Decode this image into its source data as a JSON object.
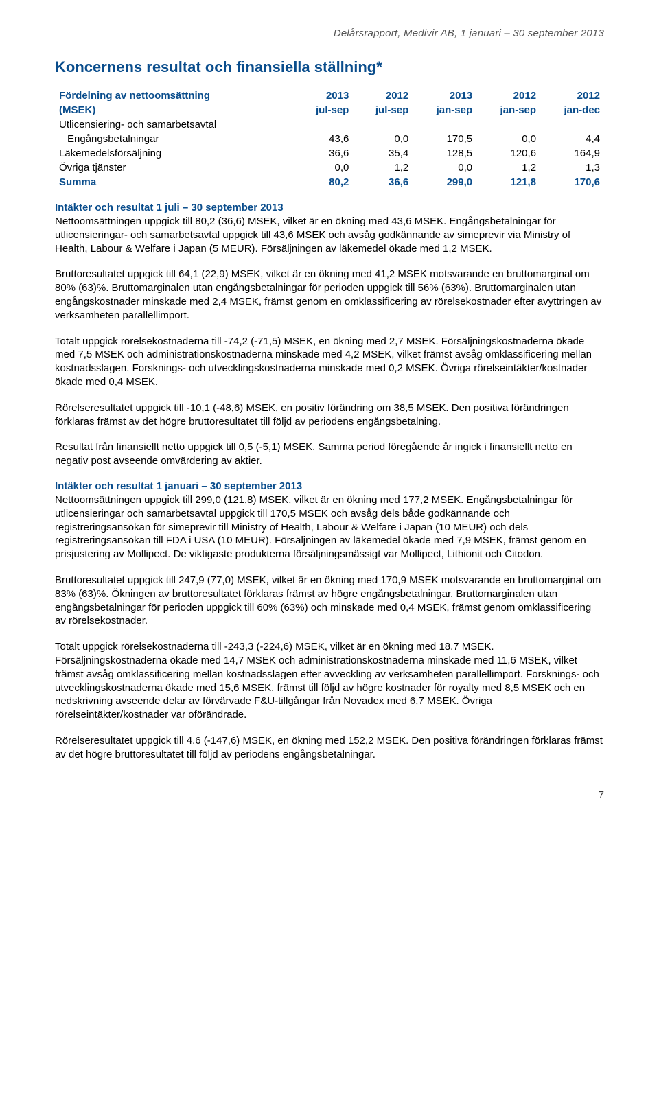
{
  "header": "Delårsrapport, Medivir AB, 1 januari – 30 september 2013",
  "title": "Koncernens resultat och finansiella ställning*",
  "table": {
    "head_rows": [
      [
        "Fördelning av nettoomsättning",
        "2013",
        "2012",
        "2013",
        "2012",
        "2012"
      ],
      [
        "(MSEK)",
        "jul-sep",
        "jul-sep",
        "jan-sep",
        "jan-sep",
        "jan-dec"
      ]
    ],
    "body_rows": [
      {
        "label": "Utlicensiering- och samarbetsavtal",
        "cells": [
          "",
          "",
          "",
          "",
          ""
        ],
        "indent": false
      },
      {
        "label": "Engångsbetalningar",
        "cells": [
          "43,6",
          "0,0",
          "170,5",
          "0,0",
          "4,4"
        ],
        "indent": true
      },
      {
        "label": "Läkemedelsförsäljning",
        "cells": [
          "36,6",
          "35,4",
          "128,5",
          "120,6",
          "164,9"
        ],
        "indent": false
      },
      {
        "label": "Övriga tjänster",
        "cells": [
          "0,0",
          "1,2",
          "0,0",
          "1,2",
          "1,3"
        ],
        "indent": false
      }
    ],
    "summa_row": {
      "label": "Summa",
      "cells": [
        "80,2",
        "36,6",
        "299,0",
        "121,8",
        "170,6"
      ]
    }
  },
  "section1": {
    "heading": "Intäkter och resultat 1 juli – 30 september 2013",
    "p1": "Nettoomsättningen uppgick till 80,2 (36,6) MSEK, vilket är en ökning med 43,6 MSEK. Engångsbetalningar för utlicensieringar- och samarbetsavtal uppgick till 43,6 MSEK och avsåg godkännande av simeprevir via Ministry of Health, Labour & Welfare i Japan (5 MEUR). Försäljningen av läkemedel ökade med 1,2 MSEK.",
    "p2": "Bruttoresultatet uppgick till 64,1 (22,9) MSEK, vilket är en ökning med 41,2 MSEK motsvarande en bruttomarginal om 80% (63)%. Bruttomarginalen utan engångsbetalningar för perioden uppgick till 56% (63%). Bruttomarginalen utan engångskostnader minskade med 2,4 MSEK, främst genom en omklassificering av rörelsekostnader efter avyttringen av verksamheten parallellimport.",
    "p3": "Totalt uppgick rörelsekostnaderna till -74,2 (-71,5) MSEK, en ökning med 2,7 MSEK. Försäljningskostnaderna ökade med 7,5 MSEK och administrationskostnaderna minskade med 4,2 MSEK, vilket främst avsåg omklassificering mellan kostnadsslagen. Forsknings- och utvecklingskostnaderna minskade med 0,2 MSEK. Övriga rörelseintäkter/kostnader ökade med 0,4 MSEK.",
    "p4": "Rörelseresultatet uppgick till -10,1 (-48,6) MSEK, en positiv förändring om 38,5 MSEK. Den positiva förändringen förklaras främst av det högre bruttoresultatet till följd av periodens engångsbetalning.",
    "p5": "Resultat från finansiellt netto uppgick till 0,5 (-5,1) MSEK. Samma period föregående år ingick i finansiellt netto en negativ post avseende omvärdering av aktier."
  },
  "section2": {
    "heading": "Intäkter och resultat 1 januari – 30 september 2013",
    "p1": "Nettoomsättningen uppgick till 299,0 (121,8) MSEK, vilket är en ökning med 177,2 MSEK. Engångsbetalningar för utlicensieringar och samarbetsavtal uppgick till 170,5 MSEK och avsåg dels både godkännande och registreringsansökan för simeprevir till Ministry of Health, Labour & Welfare i Japan (10 MEUR) och dels registreringsansökan till FDA i USA (10 MEUR). Försäljningen av läkemedel ökade med 7,9 MSEK, främst genom en prisjustering av Mollipect. De viktigaste produkterna försäljningsmässigt var Mollipect, Lithionit och Citodon.",
    "p2": "Bruttoresultatet uppgick till 247,9 (77,0) MSEK, vilket är en ökning med 170,9 MSEK motsvarande en bruttomarginal om 83% (63)%. Ökningen av bruttoresultatet förklaras främst av högre engångsbetalningar. Bruttomarginalen utan engångsbetalningar för perioden uppgick till 60% (63%) och minskade med 0,4 MSEK, främst genom omklassificering av rörelsekostnader.",
    "p3": "Totalt uppgick rörelsekostnaderna till -243,3 (-224,6) MSEK, vilket är en ökning med 18,7 MSEK. Försäljningskostnaderna ökade med 14,7 MSEK och administrationskostnaderna minskade med 11,6 MSEK, vilket främst avsåg omklassificering mellan kostnadsslagen efter avveckling av verksamheten parallellimport. Forsknings- och utvecklingskostnaderna ökade med 15,6 MSEK, främst till följd av högre kostnader för royalty med 8,5 MSEK och en nedskrivning avseende delar av förvärvade F&U-tillgångar från Novadex med 6,7 MSEK. Övriga rörelseintäkter/kostnader var oförändrade.",
    "p4": "Rörelseresultatet uppgick till 4,6 (-147,6) MSEK, en ökning med 152,2 MSEK. Den positiva förändringen förklaras främst av det högre bruttoresultatet till följd av periodens engångsbetalningar."
  },
  "page_number": "7",
  "colors": {
    "heading_blue": "#0a4d8c",
    "body_text": "#000000",
    "header_gray": "#555555",
    "background": "#ffffff"
  },
  "typography": {
    "title_fontsize_pt": 16,
    "body_fontsize_pt": 11,
    "font_family": "Arial"
  }
}
